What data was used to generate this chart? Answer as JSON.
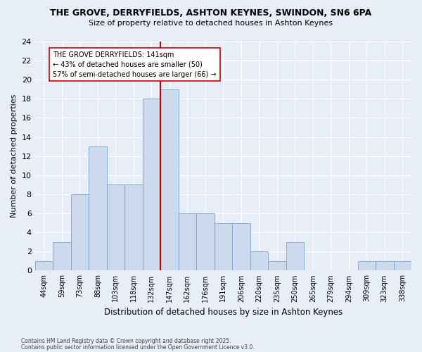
{
  "title": "THE GROVE, DERRYFIELDS, ASHTON KEYNES, SWINDON, SN6 6PA",
  "subtitle": "Size of property relative to detached houses in Ashton Keynes",
  "xlabel": "Distribution of detached houses by size in Ashton Keynes",
  "ylabel": "Number of detached properties",
  "footnote1": "Contains HM Land Registry data © Crown copyright and database right 2025.",
  "footnote2": "Contains public sector information licensed under the Open Government Licence v3.0.",
  "categories": [
    "44sqm",
    "59sqm",
    "73sqm",
    "88sqm",
    "103sqm",
    "118sqm",
    "132sqm",
    "147sqm",
    "162sqm",
    "176sqm",
    "191sqm",
    "206sqm",
    "220sqm",
    "235sqm",
    "250sqm",
    "265sqm",
    "279sqm",
    "294sqm",
    "309sqm",
    "323sqm",
    "338sqm"
  ],
  "values": [
    1,
    3,
    8,
    13,
    9,
    9,
    18,
    19,
    6,
    6,
    5,
    5,
    2,
    1,
    3,
    0,
    0,
    0,
    1,
    1,
    1
  ],
  "bar_color": "#cddaed",
  "bar_edge_color": "#7ba3cc",
  "vline_color": "#cc0000",
  "annotation_text": "THE GROVE DERRYFIELDS: 141sqm\n← 43% of detached houses are smaller (50)\n57% of semi-detached houses are larger (66) →",
  "annotation_box_color": "#ffffff",
  "annotation_box_edge": "#cc0000",
  "bg_color": "#e8eef8",
  "grid_color": "#ffffff",
  "ylim": [
    0,
    24
  ],
  "yticks": [
    0,
    2,
    4,
    6,
    8,
    10,
    12,
    14,
    16,
    18,
    20,
    22,
    24
  ]
}
